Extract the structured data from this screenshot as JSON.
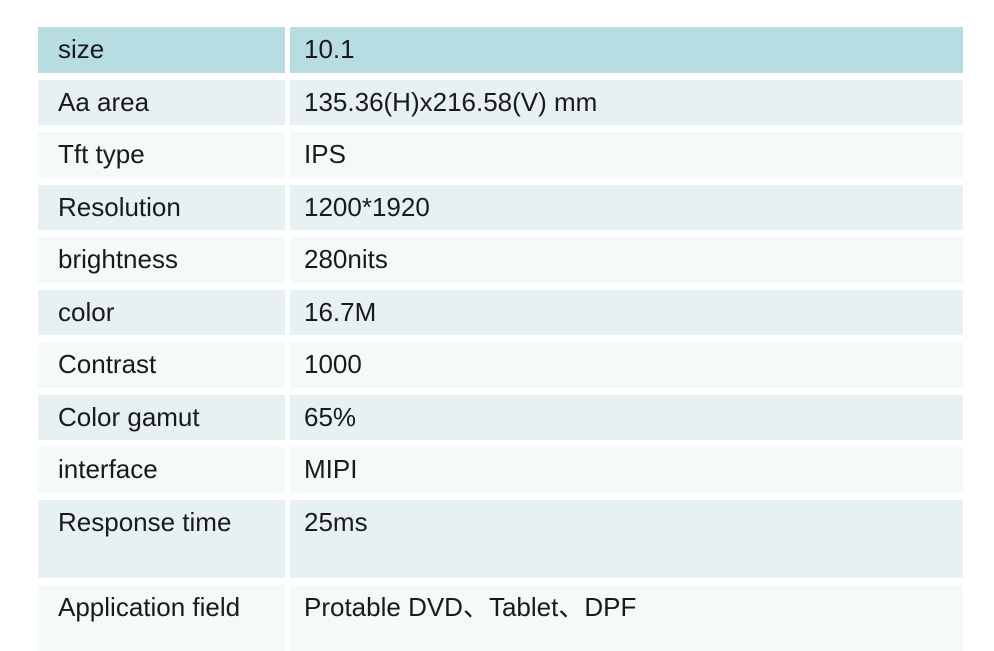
{
  "page": {
    "background_color": "#ffffff"
  },
  "table": {
    "colors": {
      "header_row_bg": "#b7dce1",
      "row_alt_a_bg": "#e7f0f2",
      "row_alt_b_bg": "#f4f9fa",
      "text": "#1a1a1a"
    },
    "rows": [
      {
        "label": "size",
        "value": "10.1"
      },
      {
        "label": "Aa area",
        "value": "135.36(H)x216.58(V) mm"
      },
      {
        "label": "Tft type",
        "value": "IPS"
      },
      {
        "label": "Resolution",
        "value": "1200*1920"
      },
      {
        "label": "brightness",
        "value": "280nits"
      },
      {
        "label": "color",
        "value": "16.7M"
      },
      {
        "label": "Contrast",
        "value": "1000"
      },
      {
        "label": "Color gamut",
        "value": "65%"
      },
      {
        "label": "interface",
        "value": "MIPI"
      },
      {
        "label": "Response time",
        "value": "25ms"
      },
      {
        "label": "Application field",
        "value": "Protable DVD、Tablet、DPF"
      }
    ]
  }
}
